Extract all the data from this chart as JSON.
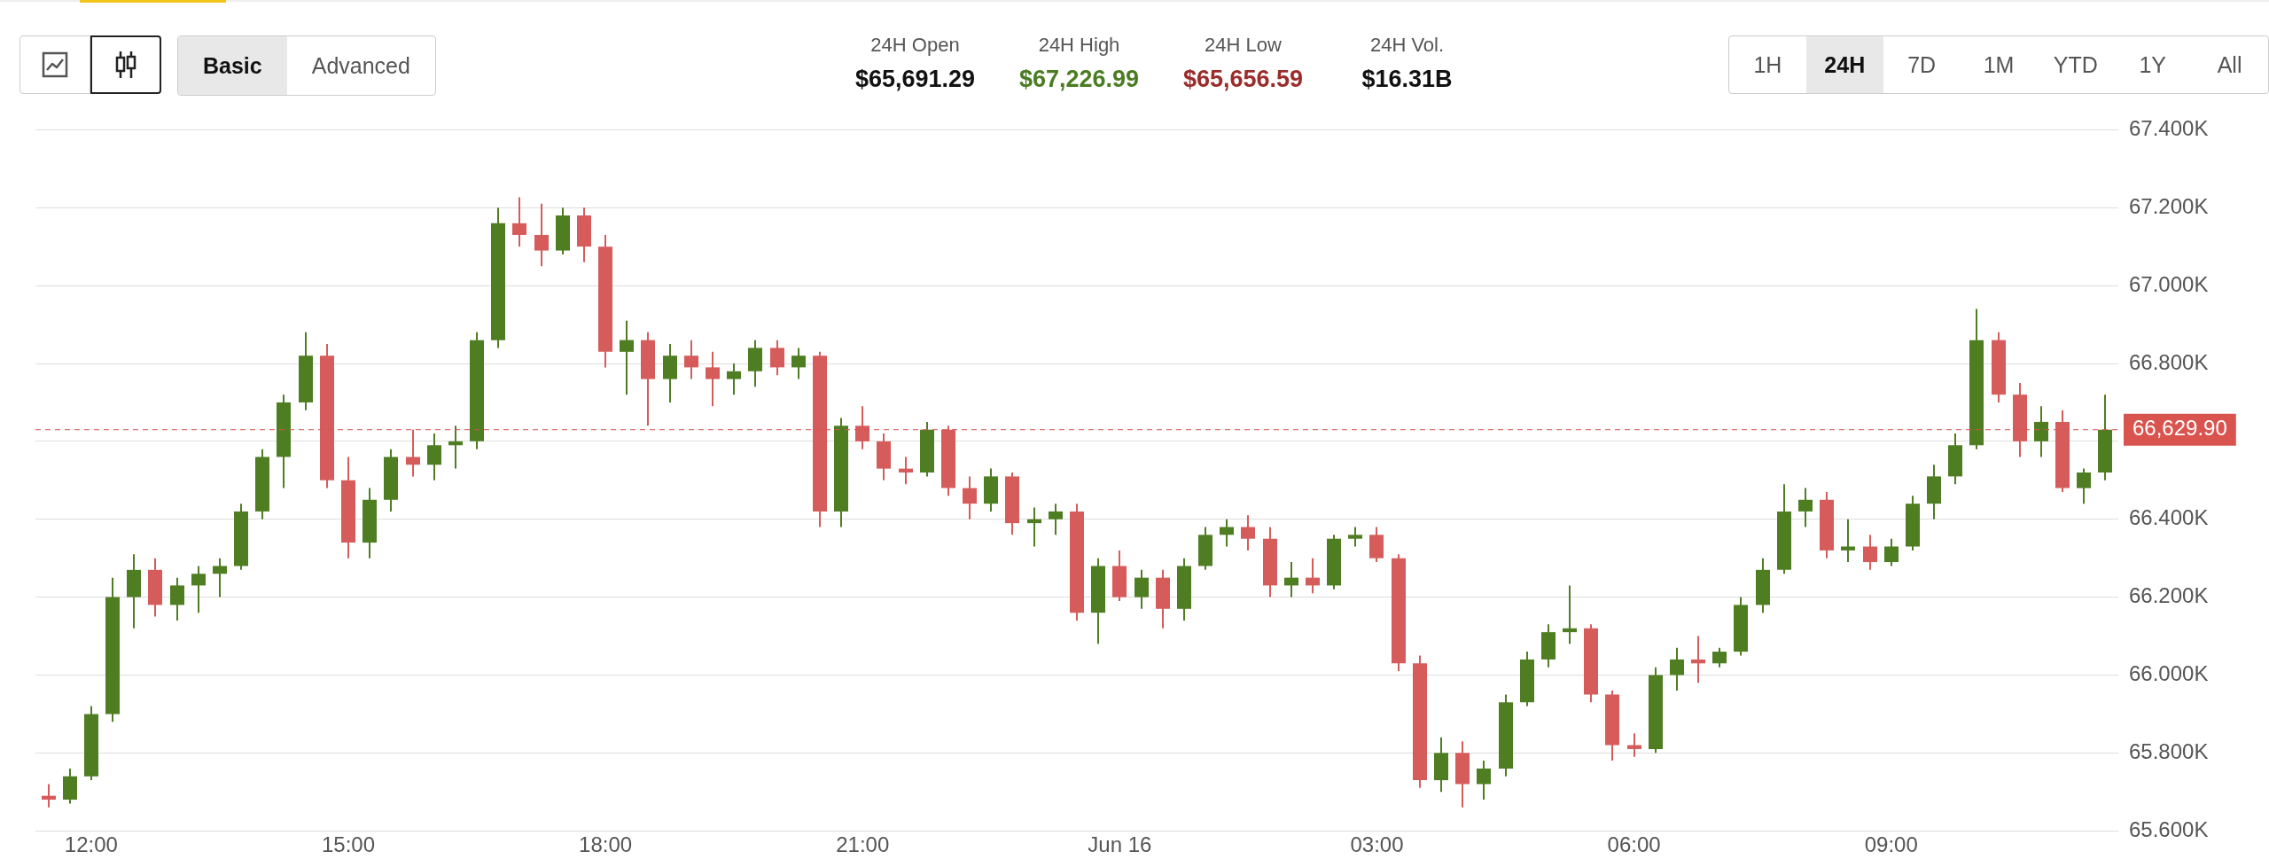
{
  "chart_data": {
    "type": "candlestick",
    "annotations": [
      "24H Open",
      "$65,691.29",
      "24H High",
      "$67,226.99",
      "24H Low",
      "$65,656.59",
      "24H Vol.",
      "$16.31B",
      "Basic",
      "Advanced",
      "1H",
      "24H",
      "7D",
      "1M",
      "YTD",
      "1Y",
      "All"
    ],
    "x": [
      "--06-15T11:30",
      "--06-15T11:45",
      "--06-15T12:00",
      "--06-15T12:15",
      "--06-15T12:30",
      "--06-15T12:45",
      "--06-15T13:00",
      "--06-15T13:15",
      "--06-15T13:30",
      "--06-15T13:45",
      "--06-15T14:00",
      "--06-15T14:15",
      "--06-15T14:30",
      "--06-15T14:45",
      "--06-15T15:00",
      "--06-15T15:15",
      "--06-15T15:30",
      "--06-15T15:45",
      "--06-15T16:00",
      "--06-15T16:15",
      "--06-15T16:30",
      "--06-15T16:45",
      "--06-15T17:00",
      "--06-15T17:15",
      "--06-15T17:30",
      "--06-15T17:45",
      "--06-15T18:00",
      "--06-15T18:15",
      "--06-15T18:30",
      "--06-15T18:45",
      "--06-15T19:00",
      "--06-15T19:15",
      "--06-15T19:30",
      "--06-15T19:45",
      "--06-15T20:00",
      "--06-15T20:15",
      "--06-15T20:30",
      "--06-15T20:45",
      "--06-15T21:00",
      "--06-15T21:15",
      "--06-15T21:30",
      "--06-15T21:45",
      "--06-15T22:00",
      "--06-15T22:15",
      "--06-15T22:30",
      "--06-15T22:45",
      "--06-15T23:00",
      "--06-15T23:15",
      "--06-15T23:30",
      "--06-15T23:45",
      "--06-16T00:00",
      "--06-16T00:15",
      "--06-16T00:30",
      "--06-16T00:45",
      "--06-16T01:00",
      "--06-16T01:15",
      "--06-16T01:30",
      "--06-16T01:45",
      "--06-16T02:00",
      "--06-16T02:15",
      "--06-16T02:30",
      "--06-16T02:45",
      "--06-16T03:00",
      "--06-16T03:15",
      "--06-16T03:30",
      "--06-16T03:45",
      "--06-16T04:00",
      "--06-16T04:15",
      "--06-16T04:30",
      "--06-16T04:45",
      "--06-16T05:00",
      "--06-16T05:15",
      "--06-16T05:30",
      "--06-16T05:45",
      "--06-16T06:00",
      "--06-16T06:15",
      "--06-16T06:30",
      "--06-16T06:45",
      "--06-16T07:00",
      "--06-16T07:15",
      "--06-16T07:30",
      "--06-16T07:45",
      "--06-16T08:00",
      "--06-16T08:15",
      "--06-16T08:30",
      "--06-16T08:45",
      "--06-16T09:00",
      "--06-16T09:15",
      "--06-16T09:30",
      "--06-16T09:45",
      "--06-16T10:00",
      "--06-16T10:15",
      "--06-16T10:30",
      "--06-16T10:45",
      "--06-16T11:00",
      "--06-16T11:15",
      "--06-16T11:30"
    ],
    "ohlc": [
      [
        65690,
        65720,
        65660,
        65680
      ],
      [
        65680,
        65760,
        65670,
        65740
      ],
      [
        65740,
        65920,
        65730,
        65900
      ],
      [
        65900,
        66250,
        65880,
        66200
      ],
      [
        66200,
        66310,
        66120,
        66270
      ],
      [
        66270,
        66300,
        66150,
        66180
      ],
      [
        66180,
        66250,
        66140,
        66230
      ],
      [
        66230,
        66280,
        66160,
        66260
      ],
      [
        66260,
        66300,
        66200,
        66280
      ],
      [
        66280,
        66440,
        66270,
        66420
      ],
      [
        66420,
        66580,
        66400,
        66560
      ],
      [
        66560,
        66720,
        66480,
        66700
      ],
      [
        66700,
        66880,
        66680,
        66820
      ],
      [
        66820,
        66850,
        66480,
        66500
      ],
      [
        66500,
        66560,
        66300,
        66340
      ],
      [
        66340,
        66480,
        66300,
        66450
      ],
      [
        66450,
        66580,
        66420,
        66560
      ],
      [
        66560,
        66630,
        66510,
        66540
      ],
      [
        66540,
        66620,
        66500,
        66590
      ],
      [
        66590,
        66640,
        66530,
        66600
      ],
      [
        66600,
        66880,
        66580,
        66860
      ],
      [
        66860,
        67200,
        66840,
        67160
      ],
      [
        67160,
        67226.99,
        67100,
        67130
      ],
      [
        67130,
        67210,
        67050,
        67090
      ],
      [
        67090,
        67200,
        67080,
        67180
      ],
      [
        67180,
        67200,
        67060,
        67100
      ],
      [
        67100,
        67130,
        66790,
        66830
      ],
      [
        66830,
        66910,
        66720,
        66860
      ],
      [
        66860,
        66880,
        66640,
        66760
      ],
      [
        66760,
        66850,
        66700,
        66820
      ],
      [
        66820,
        66860,
        66760,
        66790
      ],
      [
        66790,
        66830,
        66690,
        66760
      ],
      [
        66760,
        66800,
        66720,
        66780
      ],
      [
        66780,
        66860,
        66740,
        66840
      ],
      [
        66840,
        66860,
        66770,
        66790
      ],
      [
        66790,
        66840,
        66760,
        66820
      ],
      [
        66820,
        66830,
        66380,
        66420
      ],
      [
        66420,
        66660,
        66380,
        66640
      ],
      [
        66640,
        66690,
        66580,
        66600
      ],
      [
        66600,
        66620,
        66500,
        66530
      ],
      [
        66530,
        66560,
        66490,
        66520
      ],
      [
        66520,
        66650,
        66510,
        66630
      ],
      [
        66630,
        66640,
        66460,
        66480
      ],
      [
        66480,
        66510,
        66400,
        66440
      ],
      [
        66440,
        66530,
        66420,
        66510
      ],
      [
        66510,
        66520,
        66360,
        66390
      ],
      [
        66390,
        66430,
        66330,
        66400
      ],
      [
        66400,
        66440,
        66360,
        66420
      ],
      [
        66420,
        66440,
        66140,
        66160
      ],
      [
        66160,
        66300,
        66080,
        66280
      ],
      [
        66280,
        66320,
        66190,
        66200
      ],
      [
        66200,
        66270,
        66170,
        66250
      ],
      [
        66250,
        66270,
        66120,
        66170
      ],
      [
        66170,
        66300,
        66140,
        66280
      ],
      [
        66280,
        66380,
        66270,
        66360
      ],
      [
        66360,
        66400,
        66330,
        66380
      ],
      [
        66380,
        66410,
        66320,
        66350
      ],
      [
        66350,
        66380,
        66200,
        66230
      ],
      [
        66230,
        66290,
        66200,
        66250
      ],
      [
        66250,
        66300,
        66210,
        66230
      ],
      [
        66230,
        66360,
        66220,
        66350
      ],
      [
        66350,
        66380,
        66330,
        66360
      ],
      [
        66360,
        66380,
        66290,
        66300
      ],
      [
        66300,
        66310,
        66010,
        66030
      ],
      [
        66030,
        66050,
        65710,
        65730
      ],
      [
        65730,
        65840,
        65700,
        65800
      ],
      [
        65800,
        65830,
        65660,
        65720
      ],
      [
        65720,
        65780,
        65680,
        65760
      ],
      [
        65760,
        65950,
        65740,
        65930
      ],
      [
        65930,
        66060,
        65920,
        66040
      ],
      [
        66040,
        66130,
        66020,
        66110
      ],
      [
        66110,
        66230,
        66080,
        66120
      ],
      [
        66120,
        66130,
        65930,
        65950
      ],
      [
        65950,
        65960,
        65780,
        65820
      ],
      [
        65820,
        65850,
        65790,
        65810
      ],
      [
        65810,
        66020,
        65800,
        66000
      ],
      [
        66000,
        66070,
        65960,
        66040
      ],
      [
        66040,
        66100,
        65980,
        66030
      ],
      [
        66030,
        66070,
        66020,
        66060
      ],
      [
        66060,
        66200,
        66050,
        66180
      ],
      [
        66180,
        66300,
        66160,
        66270
      ],
      [
        66270,
        66490,
        66260,
        66420
      ],
      [
        66420,
        66480,
        66380,
        66450
      ],
      [
        66450,
        66470,
        66300,
        66320
      ],
      [
        66320,
        66400,
        66290,
        66330
      ],
      [
        66330,
        66360,
        66270,
        66290
      ],
      [
        66290,
        66350,
        66280,
        66330
      ],
      [
        66330,
        66460,
        66320,
        66440
      ],
      [
        66440,
        66540,
        66400,
        66510
      ],
      [
        66510,
        66620,
        66490,
        66590
      ],
      [
        66590,
        66940,
        66580,
        66860
      ],
      [
        66860,
        66880,
        66700,
        66720
      ],
      [
        66720,
        66750,
        66560,
        66600
      ],
      [
        66600,
        66690,
        66560,
        66650
      ],
      [
        66650,
        66680,
        66470,
        66480
      ],
      [
        66480,
        66530,
        66440,
        66520
      ],
      [
        66520,
        66720,
        66500,
        66629.9
      ]
    ],
    "xlim": [
      "--06-15T11:21",
      "--06-16T11:39"
    ],
    "xticks": [
      {
        "value": "--06-15T12:00",
        "label": "12:00"
      },
      {
        "value": "--06-15T15:00",
        "label": "15:00"
      },
      {
        "value": "--06-15T18:00",
        "label": "18:00"
      },
      {
        "value": "--06-15T21:00",
        "label": "21:00"
      },
      {
        "value": "--06-16T00:00",
        "label": "Jun 16"
      },
      {
        "value": "--06-16T03:00",
        "label": "03:00"
      },
      {
        "value": "--06-16T06:00",
        "label": "06:00"
      },
      {
        "value": "--06-16T09:00",
        "label": "09:00"
      }
    ],
    "ylim": [
      65600,
      67400
    ],
    "yticks": [
      {
        "value": 65600,
        "label": "65.600K"
      },
      {
        "value": 65800,
        "label": "65.800K"
      },
      {
        "value": 66000,
        "label": "66.000K"
      },
      {
        "value": 66200,
        "label": "66.200K"
      },
      {
        "value": 66400,
        "label": "66.400K"
      },
      {
        "value": 66600,
        "label": null
      },
      {
        "value": 66800,
        "label": "66.800K"
      },
      {
        "value": 67000,
        "label": "67.000K"
      },
      {
        "value": 67200,
        "label": "67.200K"
      },
      {
        "value": 67400,
        "label": "67.400K"
      }
    ],
    "grid": "y",
    "ref_lines": [
      {
        "axis": "y",
        "value": 66629.9,
        "label": "66,629.90",
        "color": "#d9534f",
        "line_style": "dashed"
      }
    ]
  }
}
